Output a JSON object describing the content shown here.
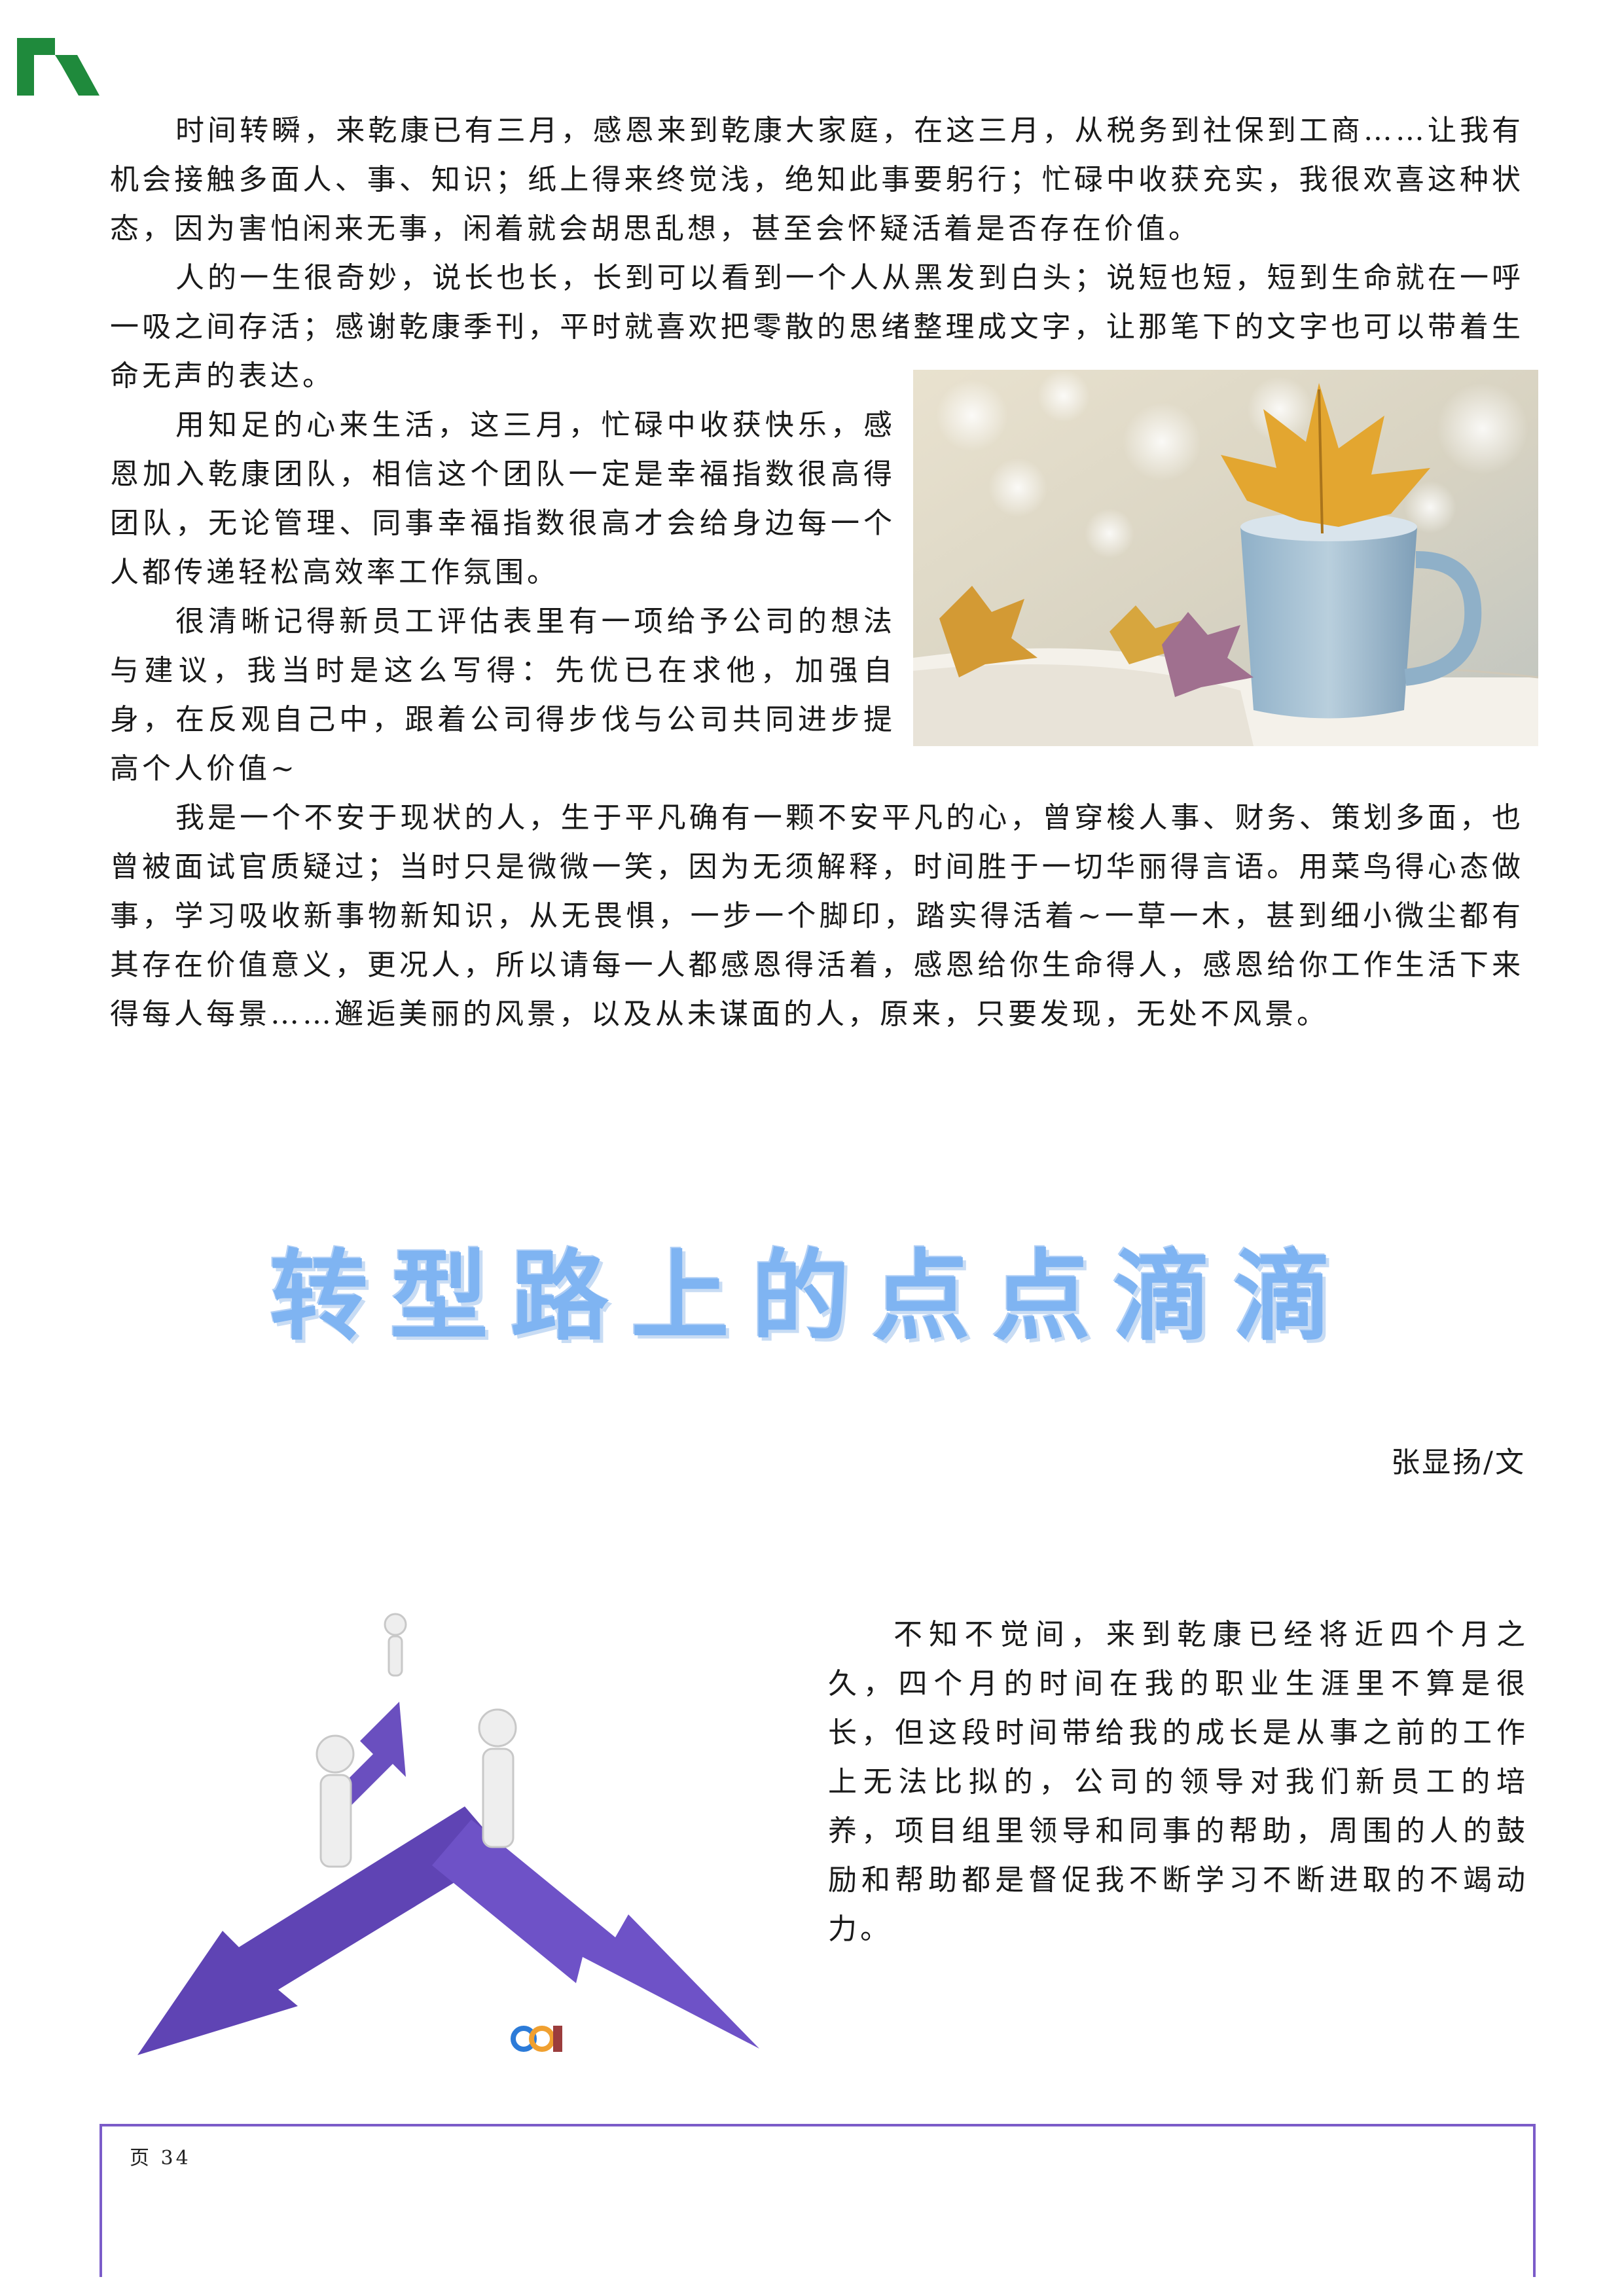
{
  "article1": {
    "paragraphs": [
      "时间转瞬，来乾康已有三月，感恩来到乾康大家庭，在这三月，从税务到社保到工商……让我有机会接触多面人、事、知识；纸上得来终觉浅，绝知此事要躬行；忙碌中收获充实，我很欢喜这种状态，因为害怕闲来无事，闲着就会胡思乱想，甚至会怀疑活着是否存在价值。",
      "人的一生很奇妙，说长也长，长到可以看到一个人从黑发到白头；说短也短，短到生命就在一呼一吸之间存活；感谢乾康季刊，平时就喜欢把零散的思绪整理成文字，让那笔下的文字也可以带着生命无声的表达。",
      "用知足的心来生活，这三月，忙碌中收获快乐，感恩加入乾康团队，相信这个团队一定是幸福指数很高得团队，无论管理、同事幸福指数很高才会给身边每一个人都传递轻松高效率工作氛围。",
      "很清晰记得新员工评估表里有一项给予公司的想法与建议，我当时是这么写得：先优已在求他，加强自身，在反观自己中，跟着公司得步伐与公司共同进步提高个人价值~",
      "我是一个不安于现状的人，生于平凡确有一颗不安平凡的心，曾穿梭人事、财务、策划多面，也曾被面试官质疑过；当时只是微微一笑，因为无须解释，时间胜于一切华丽得言语。用菜鸟得心态做事，学习吸收新事物新知识，从无畏惧，一步一个脚印，踏实得活着~一草一木，甚到细小微尘都有其存在价值意义，更况人，所以请每一人都感恩得活着，感恩给你生命得人，感恩给你工作生活下来得每人每景……邂逅美丽的风景，以及从未谋面的人，原来，只要发现，无处不风景。"
    ]
  },
  "article2": {
    "title": "转型路上的点点滴滴",
    "byline": "张显扬/文",
    "paragraphs": [
      "不知不觉间，来到乾康已经将近四个月之久，四个月的时间在我的职业生涯里不算是很长，但这段时间带给我的成长是从事之前的工作上无法比拟的，公司的领导对我们新员工的培养，项目组里领导和同事的帮助，周围的人的鼓励和帮助都是督促我不断学习不断进取的不竭动力。"
    ]
  },
  "footer": {
    "page_label": "页 34"
  },
  "colors": {
    "logo": "#1f8a3c",
    "title": "#7fb4f2",
    "frame": "#7b5cc9",
    "arrow": "#6a4fbf"
  }
}
